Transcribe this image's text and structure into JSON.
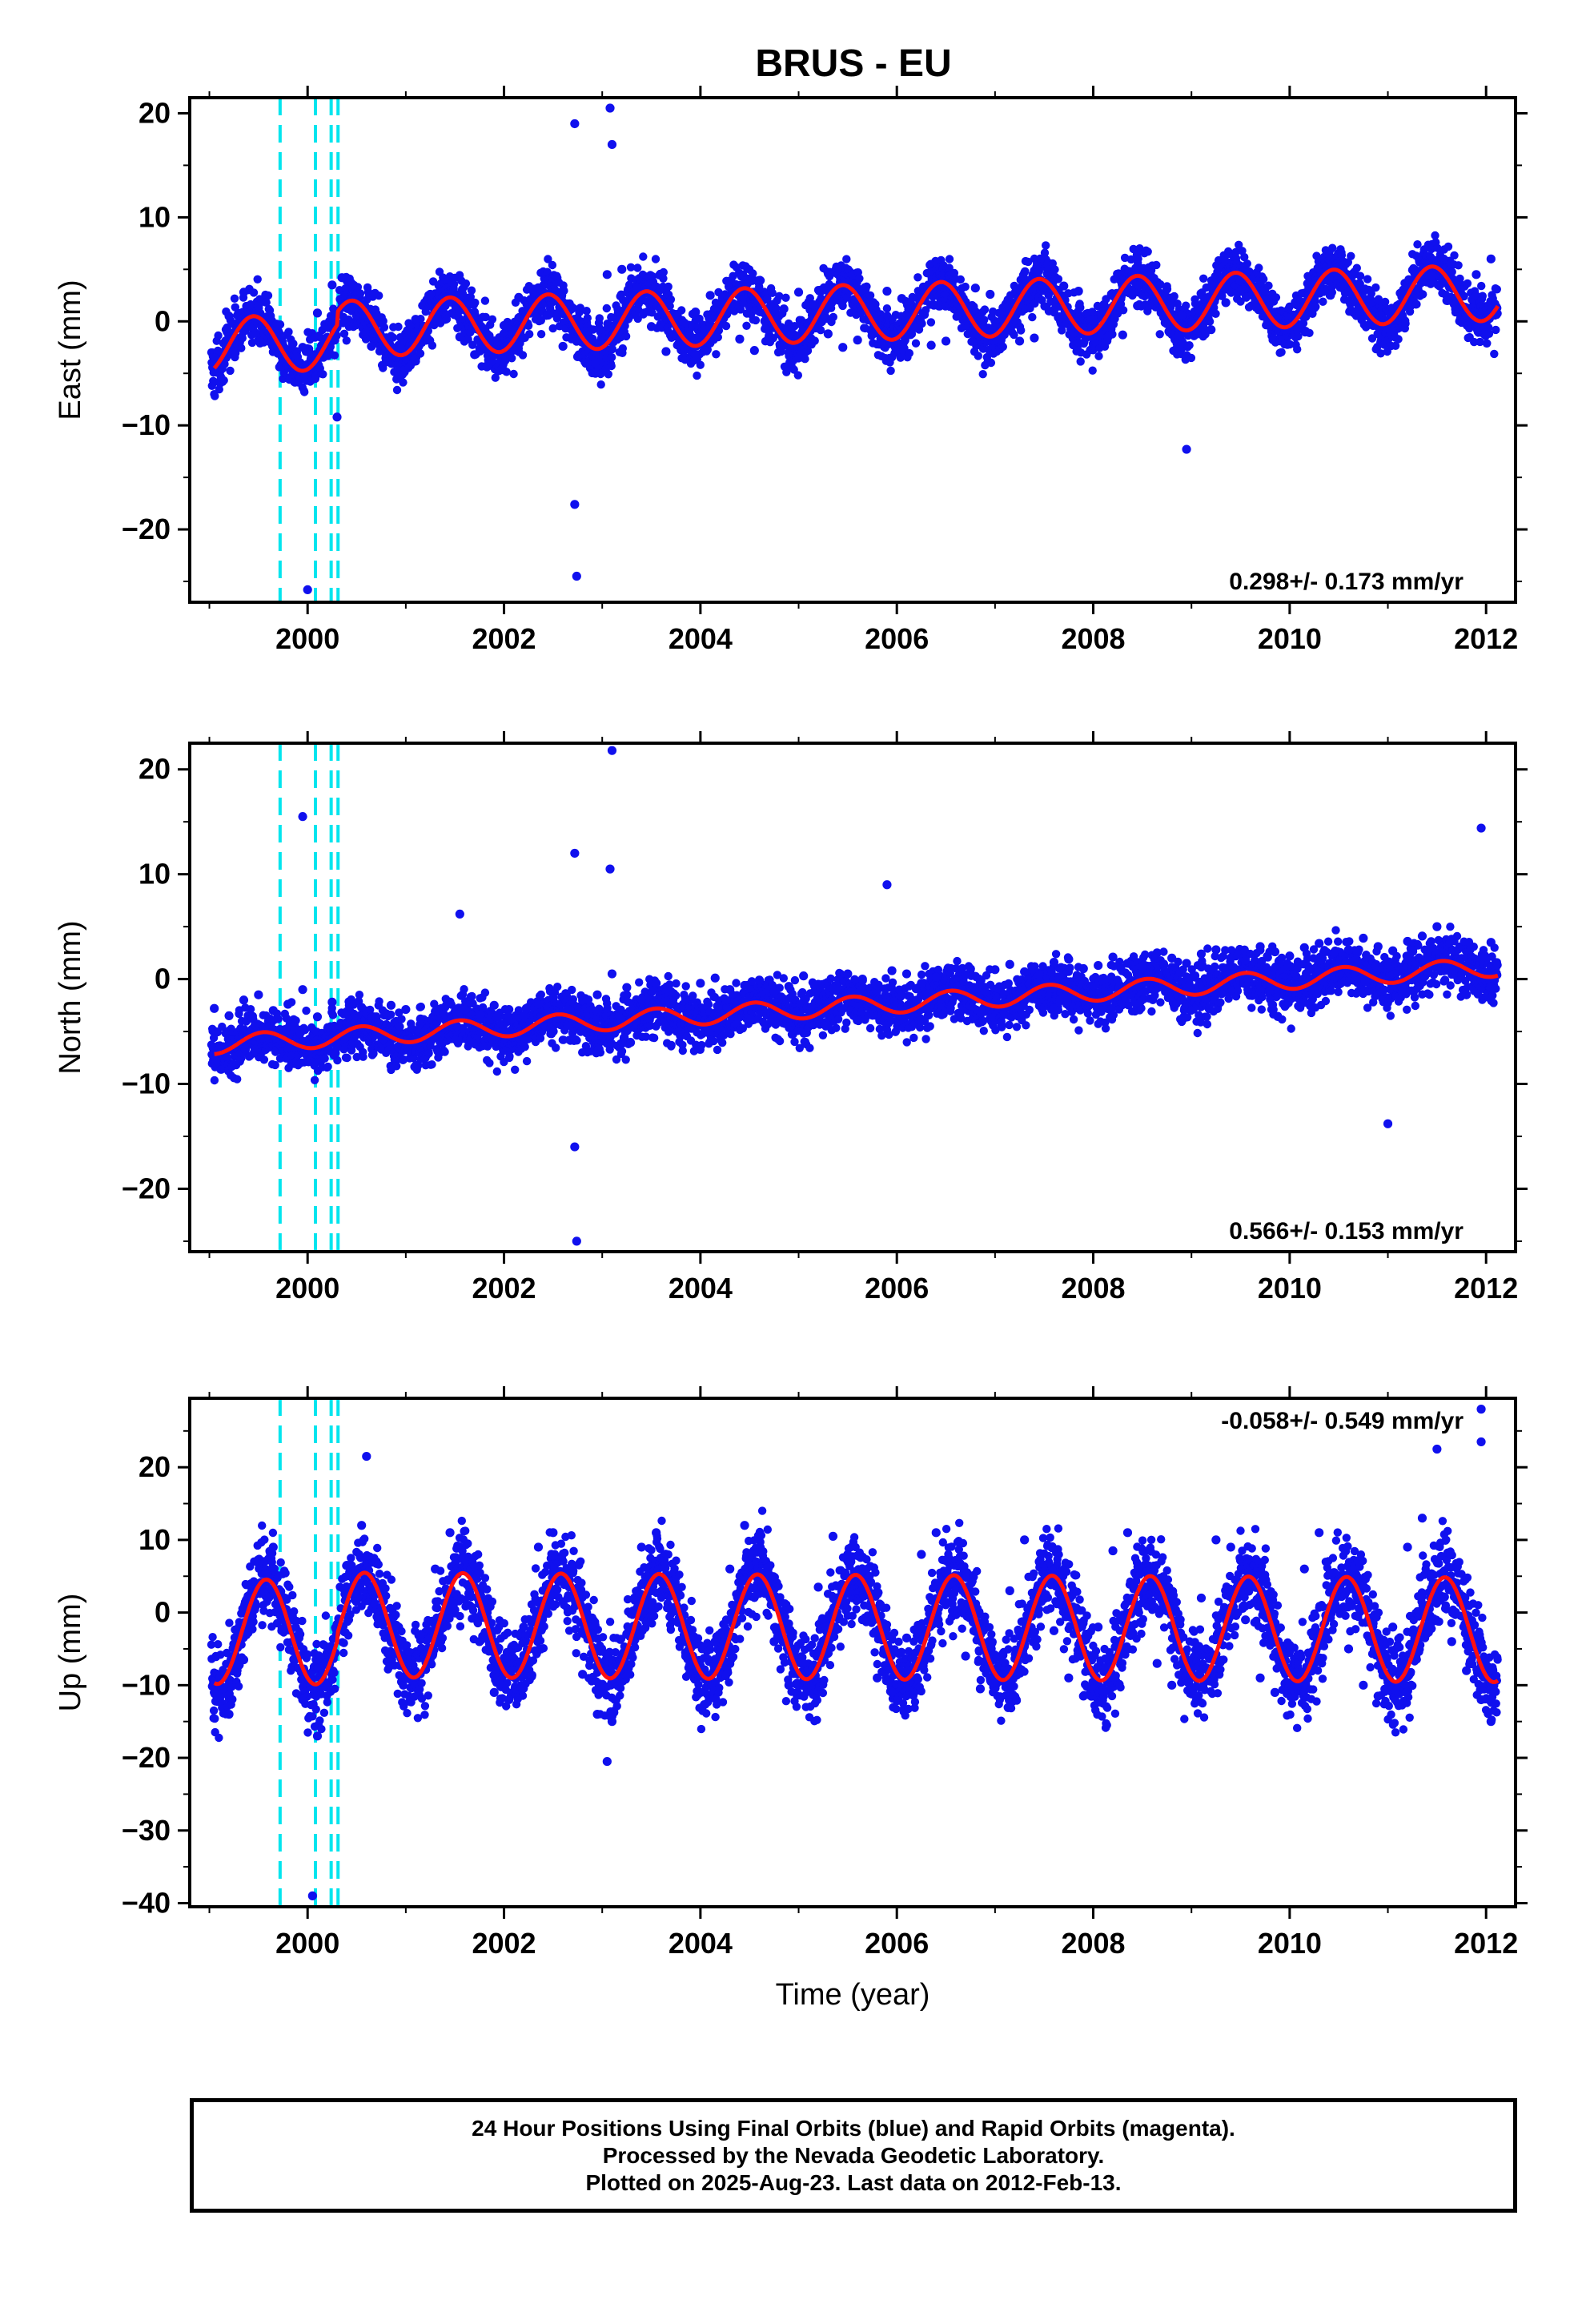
{
  "title": "BRUS - EU",
  "colors": {
    "final_orbits": "#1010ee",
    "model_fit": "#ff1010",
    "equipment_change": "#00e5ee",
    "frame": "#000000"
  },
  "chart_data": [
    {
      "type": "scatter",
      "ylabel": "East (mm)",
      "xlabel": "",
      "xlim": [
        1998.8,
        2012.3
      ],
      "ylim": [
        -27,
        21.5
      ],
      "xticks": [
        2000,
        2002,
        2004,
        2006,
        2008,
        2010,
        2012
      ],
      "yticks": [
        -20,
        -10,
        0,
        10,
        20
      ],
      "velocity_label": "0.298+/- 0.173 mm/yr",
      "velocity_label_position": "bottom-right",
      "vertical_lines": [
        1999.72,
        2000.08,
        2000.24,
        2000.31
      ],
      "model": {
        "velocity": 0.298,
        "annual_amplitude": 2.7,
        "annual_phase_peak": 0.45,
        "start_offset": -0.4,
        "offset_at_2000_3": 1.2
      },
      "series": [
        {
          "name": "Final Orbits",
          "x": [
            1999.05,
            1999.2,
            1999.35,
            1999.5,
            1999.65,
            1999.8,
            1999.95,
            2000.1,
            2000.25,
            2000.35,
            2000.5,
            2000.65,
            2000.8,
            2000.95,
            2001.1,
            2001.25,
            2001.4,
            2001.55,
            2001.7,
            2001.85,
            2002.0,
            2002.15,
            2002.3,
            2002.45,
            2002.6,
            2002.75,
            2002.9,
            2003.05,
            2003.2,
            2003.35,
            2003.5,
            2003.65,
            2003.8,
            2003.95,
            2004.1,
            2004.25,
            2004.4,
            2004.55,
            2004.7,
            2004.85,
            2005.0,
            2005.15,
            2005.3,
            2005.45,
            2005.6,
            2005.75,
            2005.9,
            2006.05,
            2006.2,
            2006.35,
            2006.5,
            2006.65,
            2006.8,
            2006.95,
            2007.1,
            2007.25,
            2007.4,
            2007.55,
            2007.7,
            2007.85,
            2008.0,
            2008.15,
            2008.3,
            2008.45,
            2008.6,
            2008.75,
            2008.9,
            2009.05,
            2009.2,
            2009.35,
            2009.5,
            2009.65,
            2009.8,
            2009.95,
            2010.1,
            2010.25,
            2010.4,
            2010.55,
            2010.7,
            2010.85,
            2011.0,
            2011.15,
            2011.3,
            2011.45,
            2011.6,
            2011.75,
            2011.9,
            2012.05,
            2002.72,
            2002.74,
            2003.08,
            2003.1,
            2000.3,
            2008.95,
            2000.0,
            2002.72
          ],
          "y": [
            -3.5,
            0.5,
            2.8,
            1.5,
            -2.0,
            -3.8,
            -2.5,
            0.8,
            3.5,
            4.2,
            1.8,
            -2.4,
            -3.9,
            -2.6,
            0.2,
            2.6,
            1.9,
            -1.5,
            -3.2,
            -2.9,
            -0.4,
            2.3,
            3.1,
            0.6,
            -2.4,
            -3.4,
            -1.7,
            4.5,
            5.0,
            3.2,
            -0.5,
            -2.9,
            -1.8,
            0.9,
            2.5,
            1.4,
            -1.7,
            -2.8,
            -1.4,
            1.2,
            2.8,
            1.6,
            -1.2,
            -2.5,
            -1.8,
            0.7,
            2.9,
            2.2,
            -0.6,
            -2.3,
            -1.9,
            0.9,
            3.2,
            2.6,
            -0.2,
            -1.9,
            -1.6,
            1.0,
            3.4,
            2.9,
            0.1,
            -1.5,
            -1.3,
            1.5,
            3.6,
            3.1,
            0.6,
            -1.2,
            -0.8,
            1.8,
            3.9,
            3.3,
            0.9,
            -0.8,
            -0.5,
            2.2,
            4.1,
            3.5,
            1.2,
            -0.4,
            -0.2,
            2.5,
            4.6,
            4.4,
            2.0,
            1.5,
            4.5,
            6.0,
            19.0,
            -24.5,
            20.5,
            17.0,
            -9.2,
            -12.3,
            -25.8,
            -17.6
          ]
        }
      ]
    },
    {
      "type": "scatter",
      "ylabel": "North (mm)",
      "xlabel": "",
      "xlim": [
        1998.8,
        2012.3
      ],
      "ylim": [
        -26,
        22.5
      ],
      "xticks": [
        2000,
        2002,
        2004,
        2006,
        2008,
        2010,
        2012
      ],
      "yticks": [
        -20,
        -10,
        0,
        10,
        20
      ],
      "velocity_label": "0.566+/- 0.153 mm/yr",
      "velocity_label_position": "bottom-right",
      "vertical_lines": [
        1999.72,
        2000.08,
        2000.24,
        2000.31
      ],
      "model": {
        "velocity": 0.566,
        "annual_amplitude": 0.9,
        "annual_phase_peak": 0.55,
        "start_offset": -2.6,
        "offset_at_2000_3": 0.0
      },
      "series": [
        {
          "name": "Final Orbits",
          "x": [
            1999.05,
            1999.2,
            1999.35,
            1999.5,
            1999.65,
            1999.8,
            1999.95,
            2000.1,
            2000.25,
            2000.4,
            2000.55,
            2000.7,
            2000.85,
            2001.0,
            2001.15,
            2001.3,
            2001.45,
            2001.6,
            2001.75,
            2001.9,
            2002.05,
            2002.2,
            2002.35,
            2002.5,
            2002.65,
            2002.8,
            2002.95,
            2003.1,
            2003.25,
            2003.4,
            2003.55,
            2003.7,
            2003.85,
            2004.0,
            2004.15,
            2004.3,
            2004.45,
            2004.6,
            2004.75,
            2004.9,
            2005.05,
            2005.2,
            2005.35,
            2005.5,
            2005.65,
            2005.8,
            2005.95,
            2006.1,
            2006.25,
            2006.4,
            2006.55,
            2006.7,
            2006.85,
            2007.0,
            2007.15,
            2007.3,
            2007.45,
            2007.6,
            2007.75,
            2007.9,
            2008.05,
            2008.2,
            2008.35,
            2008.5,
            2008.65,
            2008.8,
            2008.95,
            2009.1,
            2009.25,
            2009.4,
            2009.55,
            2009.7,
            2009.85,
            2010.0,
            2010.15,
            2010.3,
            2010.45,
            2010.6,
            2010.75,
            2010.9,
            2011.05,
            2011.2,
            2011.35,
            2011.5,
            2011.65,
            2011.8,
            2011.95,
            2012.05,
            2002.72,
            2002.74,
            2003.1,
            2003.08,
            1999.95,
            2001.55,
            2005.9,
            2011.0,
            2011.95,
            2002.72
          ],
          "y": [
            -2.8,
            -3.5,
            -2.0,
            -1.5,
            -3.0,
            -2.4,
            -1.0,
            -3.6,
            -2.2,
            -3.1,
            -2.7,
            -3.6,
            -2.5,
            -2.9,
            -3.8,
            -3.1,
            -2.2,
            -2.9,
            -3.4,
            -2.5,
            -2.9,
            -3.5,
            -2.4,
            -1.8,
            -2.9,
            -2.0,
            -1.5,
            0.5,
            -0.8,
            -1.9,
            -0.4,
            -1.2,
            -1.9,
            -0.4,
            0.1,
            -1.0,
            -0.6,
            -0.1,
            -1.2,
            -0.7,
            0.3,
            -0.5,
            -0.9,
            0.5,
            0.0,
            -0.6,
            0.8,
            0.5,
            -0.4,
            0.2,
            1.0,
            0.4,
            -0.2,
            0.9,
            1.4,
            0.7,
            0.4,
            1.6,
            1.9,
            1.0,
            1.3,
            2.1,
            1.5,
            1.2,
            2.5,
            2.0,
            1.5,
            2.4,
            2.8,
            2.0,
            1.8,
            3.1,
            2.6,
            2.2,
            3.0,
            3.4,
            2.5,
            2.8,
            3.9,
            3.1,
            2.7,
            3.6,
            4.1,
            5.0,
            3.8,
            -1.5,
            2.0,
            3.5,
            12.0,
            -25.0,
            21.8,
            10.5,
            15.5,
            6.2,
            9.0,
            -13.8,
            14.4,
            -16.0
          ]
        }
      ]
    },
    {
      "type": "scatter",
      "ylabel": "Up (mm)",
      "xlabel": "Time (year)",
      "xlim": [
        1998.8,
        2012.3
      ],
      "ylim": [
        -40.5,
        29.5
      ],
      "xticks": [
        2000,
        2002,
        2004,
        2006,
        2008,
        2010,
        2012
      ],
      "yticks": [
        -40,
        -30,
        -20,
        -10,
        0,
        10,
        20
      ],
      "velocity_label": "-0.058+/- 0.549 mm/yr",
      "velocity_label_position": "top-right",
      "vertical_lines": [
        1999.72,
        2000.08,
        2000.24,
        2000.31
      ],
      "model": {
        "velocity": -0.058,
        "annual_amplitude": 7.2,
        "annual_phase_peak": 0.58,
        "start_offset": -3.0,
        "offset_at_2000_3": 1.0
      },
      "series": [
        {
          "name": "Final Orbits",
          "x": [
            1999.05,
            1999.2,
            1999.35,
            1999.5,
            1999.65,
            1999.8,
            1999.95,
            2000.1,
            2000.25,
            2000.4,
            2000.55,
            2000.7,
            2000.85,
            2001.0,
            2001.15,
            2001.3,
            2001.45,
            2001.6,
            2001.75,
            2001.9,
            2002.05,
            2002.2,
            2002.35,
            2002.5,
            2002.65,
            2002.8,
            2002.95,
            2003.1,
            2003.25,
            2003.4,
            2003.55,
            2003.7,
            2003.85,
            2004.0,
            2004.15,
            2004.3,
            2004.45,
            2004.6,
            2004.75,
            2004.9,
            2005.05,
            2005.2,
            2005.35,
            2005.5,
            2005.65,
            2005.8,
            2005.95,
            2006.1,
            2006.25,
            2006.4,
            2006.55,
            2006.7,
            2006.85,
            2007.0,
            2007.15,
            2007.3,
            2007.45,
            2007.6,
            2007.75,
            2007.9,
            2008.05,
            2008.2,
            2008.35,
            2008.5,
            2008.65,
            2008.8,
            2008.95,
            2009.1,
            2009.25,
            2009.4,
            2009.55,
            2009.7,
            2009.85,
            2010.0,
            2010.15,
            2010.3,
            2010.45,
            2010.6,
            2010.75,
            2010.9,
            2011.05,
            2011.2,
            2011.35,
            2011.5,
            2011.65,
            2011.8,
            2011.95,
            2012.05,
            2000.05,
            2000.6,
            2003.05,
            2011.95,
            2011.95,
            2011.5
          ],
          "y": [
            -11.0,
            -14.0,
            -6.5,
            4.0,
            9.0,
            -2.0,
            -12.0,
            -17.0,
            -8.0,
            6.5,
            12.0,
            7.0,
            -4.0,
            -9.0,
            -3.0,
            6.0,
            11.0,
            7.5,
            -4.0,
            -11.0,
            -12.0,
            -2.0,
            9.0,
            11.0,
            2.0,
            -8.5,
            -14.0,
            -15.0,
            -3.0,
            9.0,
            11.0,
            3.0,
            -6.0,
            -11.0,
            -4.0,
            6.0,
            12.0,
            5.0,
            -4.0,
            -10.0,
            -7.0,
            3.5,
            10.5,
            8.0,
            -1.0,
            -9.0,
            -11.0,
            -3.5,
            8.0,
            11.0,
            4.0,
            -6.0,
            -10.5,
            -8.0,
            3.0,
            10.0,
            7.0,
            -2.5,
            -9.0,
            -11.5,
            -2.0,
            8.5,
            11.0,
            3.0,
            -7.0,
            -10.0,
            -7.5,
            2.0,
            10.0,
            9.0,
            -1.0,
            -9.0,
            -11.0,
            -4.5,
            6.0,
            11.0,
            5.5,
            -5.0,
            -10.0,
            -11.5,
            -2.0,
            9.0,
            13.0,
            7.0,
            -4.0,
            -8.0,
            -12.0,
            -15.0,
            -39.0,
            21.5,
            -20.5,
            28.0,
            23.5,
            22.5
          ]
        }
      ]
    }
  ],
  "caption": {
    "line1": "24 Hour Positions Using Final Orbits (blue) and Rapid Orbits (magenta).",
    "line2": "Processed by the Nevada Geodetic Laboratory.",
    "line3": "Plotted on 2025-Aug-23. Last data on 2012-Feb-13."
  }
}
